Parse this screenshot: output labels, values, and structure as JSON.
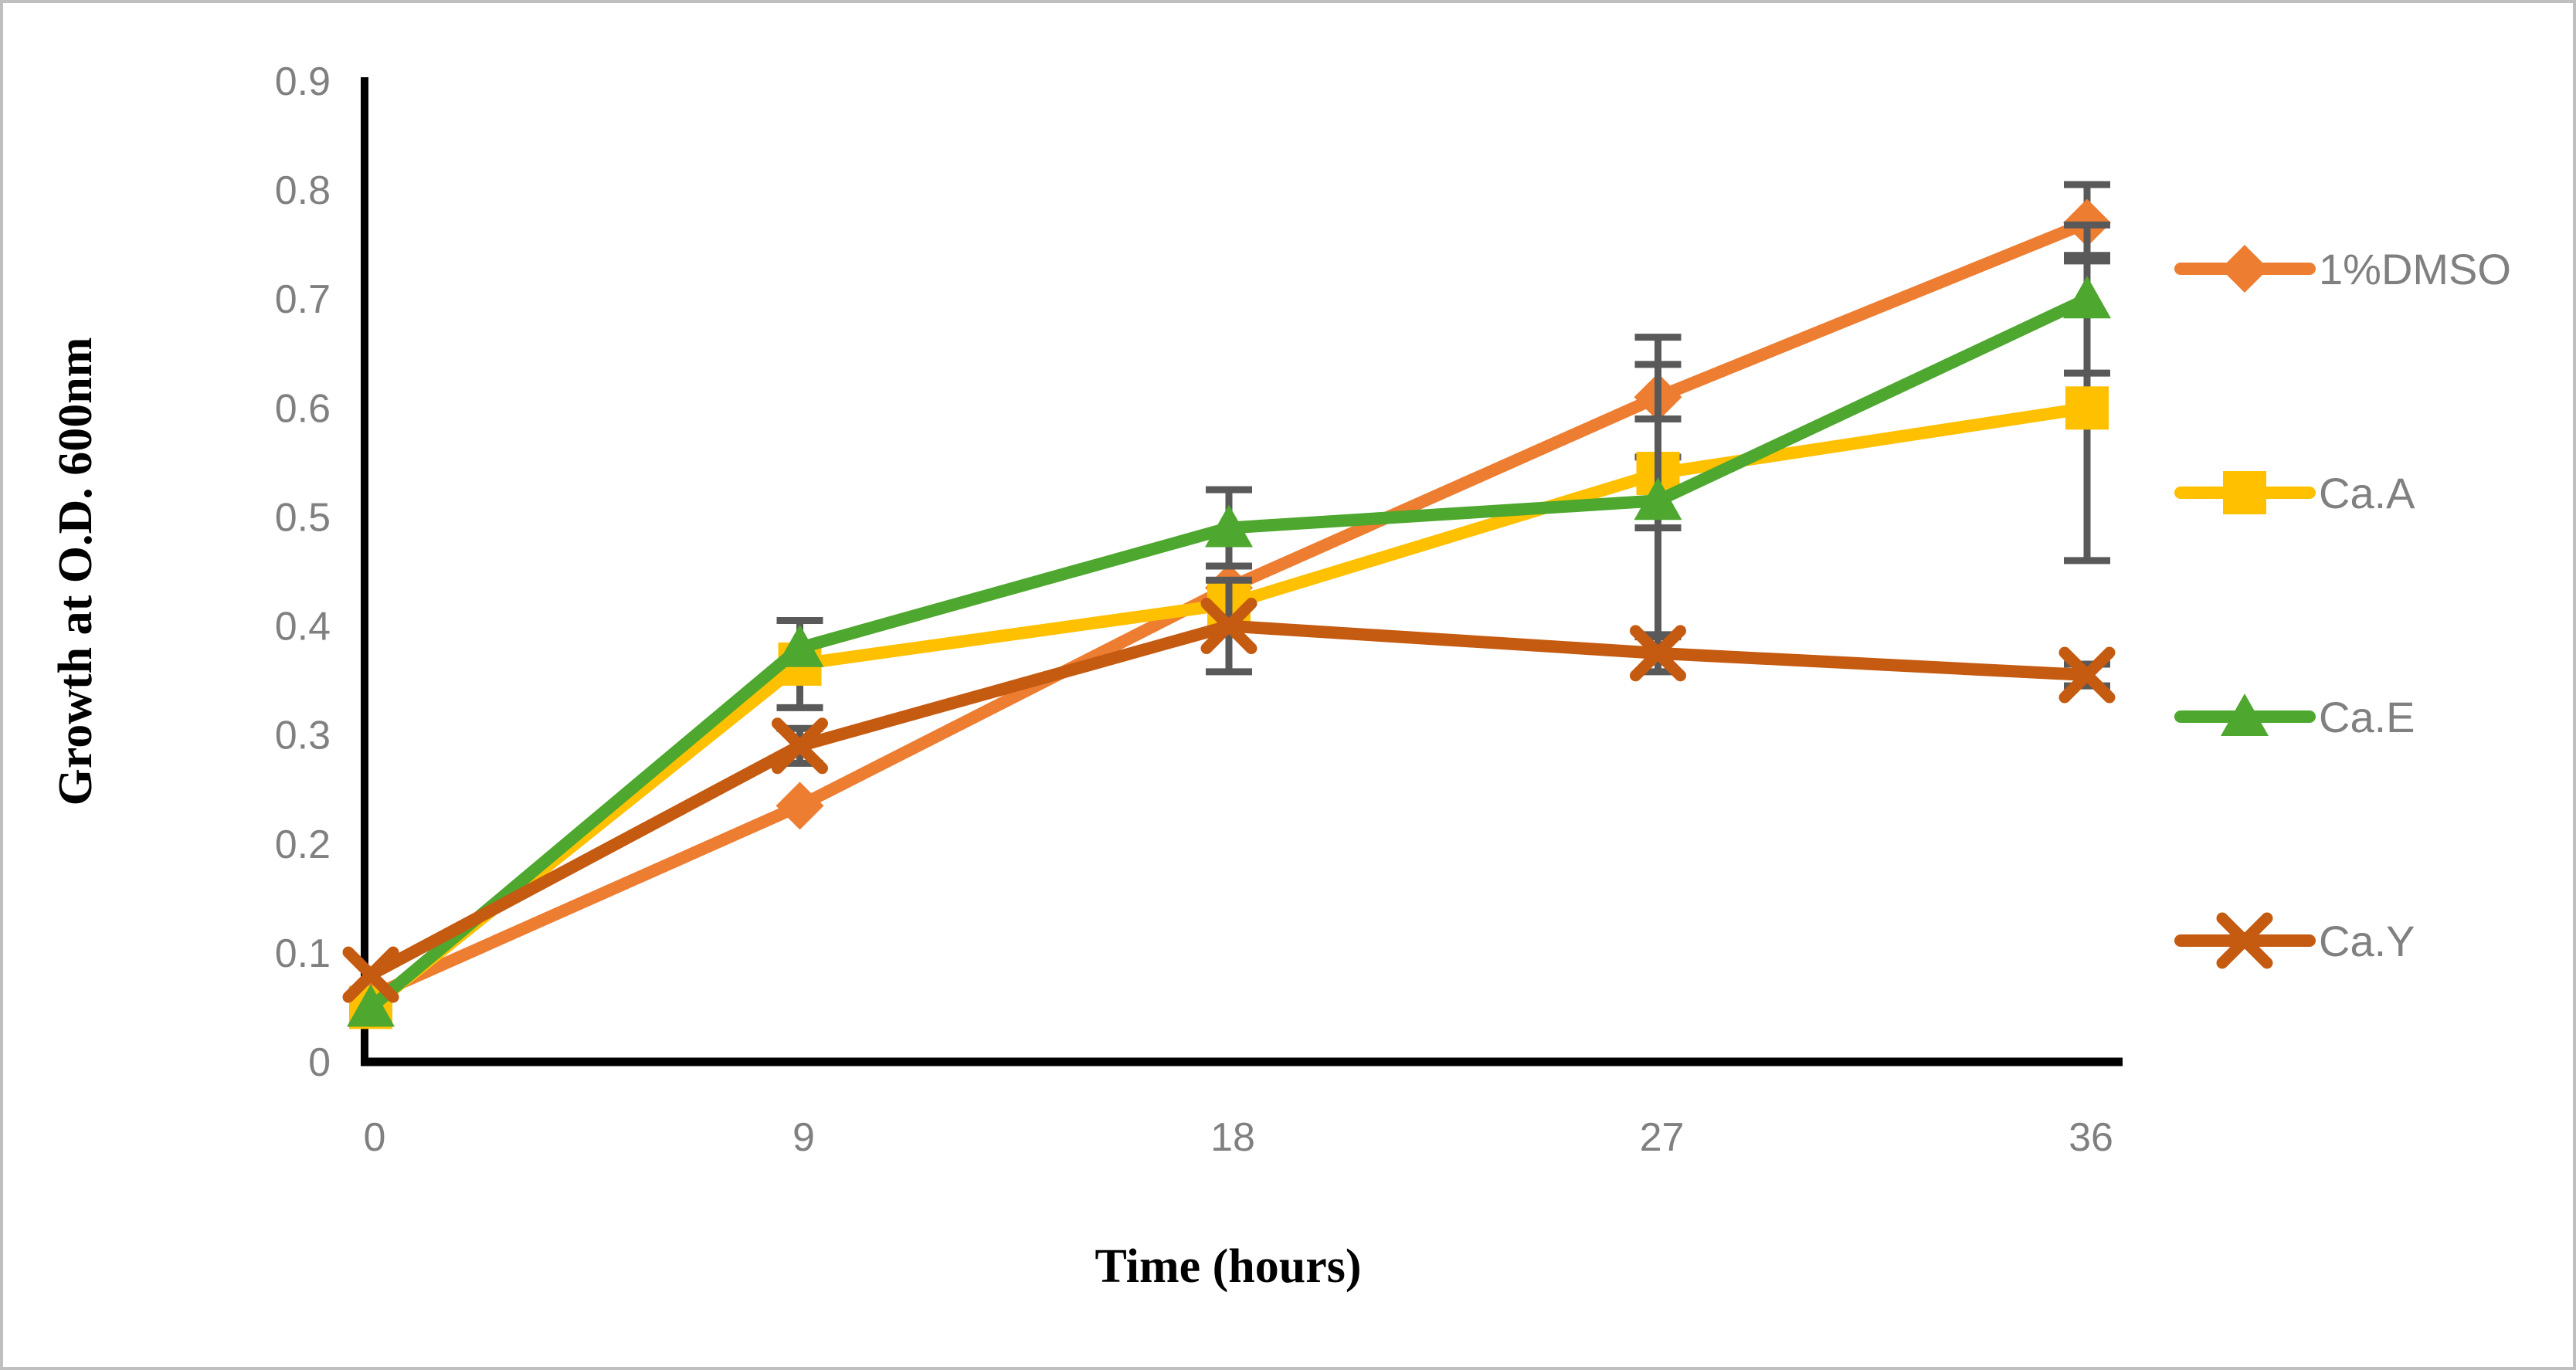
{
  "figure": {
    "background": "#FFFFFF",
    "border_color": "#BFBFBF",
    "axis_color": "#000000",
    "tick_label_color": "#808080",
    "error_bar_color": "#595959",
    "legend_text_color": "#808080"
  },
  "chart_data": {
    "type": "line",
    "title": "",
    "xlabel": "Time (hours)",
    "ylabel": "Growth at O.D. 600nm",
    "x": [
      0,
      9,
      18,
      27,
      36
    ],
    "x_tick_labels": [
      "0",
      "9",
      "18",
      "27",
      "36"
    ],
    "y_tick_labels": [
      "0",
      "0.1",
      "0.2",
      "0.3",
      "0.4",
      "0.5",
      "0.6",
      "0.7",
      "0.8",
      "0.9"
    ],
    "ylim": [
      0,
      0.9
    ],
    "xlim": [
      0,
      36
    ],
    "grid": false,
    "legend_position": "right",
    "series": [
      {
        "name": "1%DMSO",
        "color": "#ED7D31",
        "marker": "diamond",
        "values": [
          0.06,
          0.235,
          0.435,
          0.61,
          0.77
        ],
        "errors": [
          0,
          0,
          0,
          0.055,
          0.035
        ]
      },
      {
        "name": "Ca.A",
        "color": "#FFC000",
        "marker": "square",
        "values": [
          0.05,
          0.365,
          0.42,
          0.54,
          0.6
        ],
        "errors": [
          0,
          0.04,
          0,
          0.05,
          0.14
        ]
      },
      {
        "name": "Ca.E",
        "color": "#4EA72E",
        "marker": "triangle",
        "values": [
          0.05,
          0.38,
          0.49,
          0.515,
          0.7
        ],
        "errors": [
          0,
          0,
          0.035,
          0.125,
          0.068
        ]
      },
      {
        "name": "Ca.Y",
        "color": "#C55A11",
        "marker": "x",
        "values": [
          0.08,
          0.29,
          0.4,
          0.375,
          0.355
        ],
        "errors": [
          0,
          0.016,
          0.042,
          0.017,
          0.01
        ]
      }
    ]
  }
}
